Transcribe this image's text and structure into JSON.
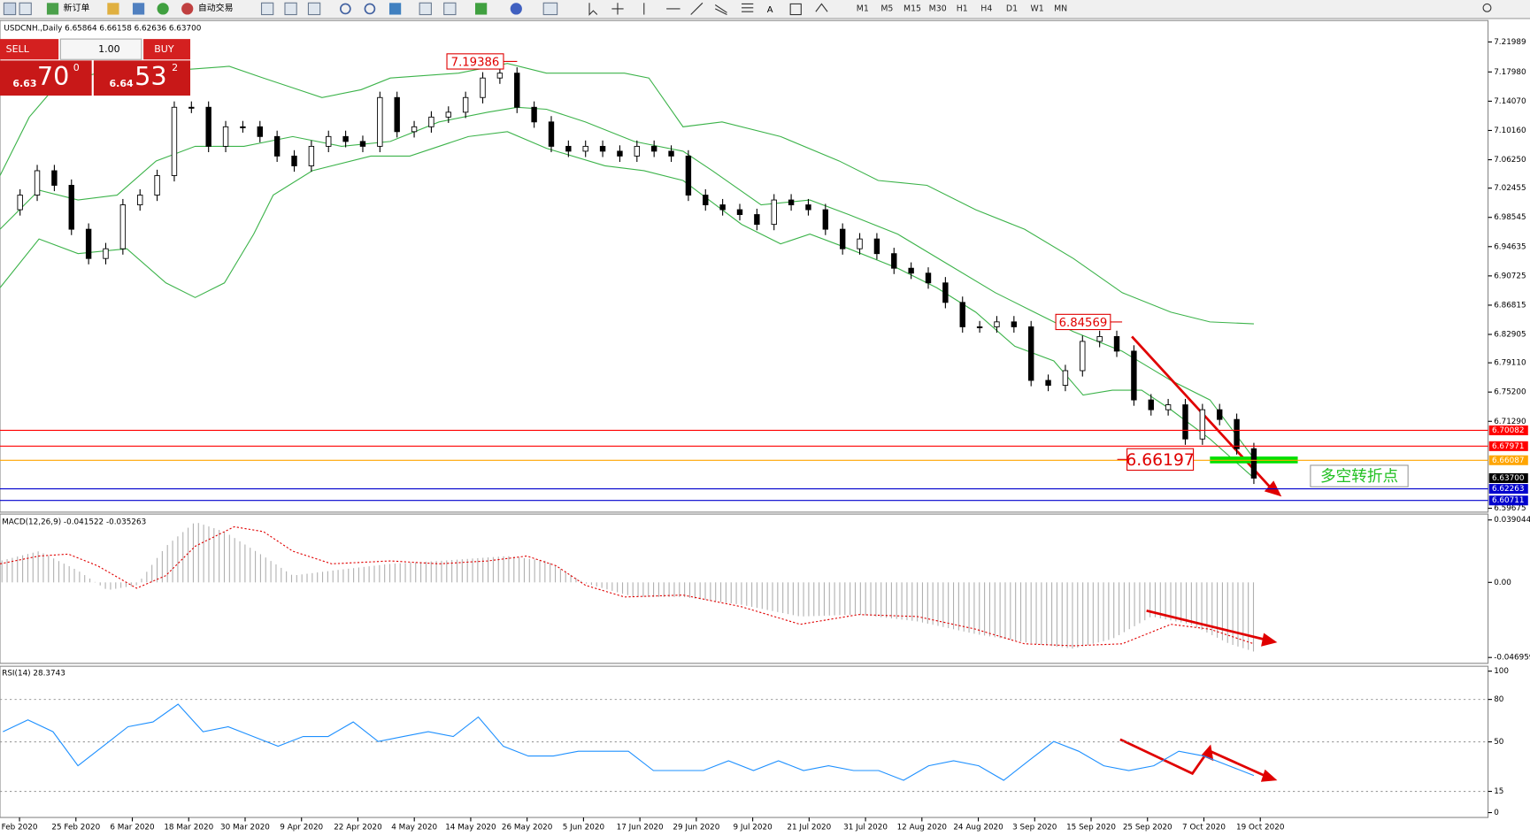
{
  "toolbar": {
    "new_order": "新订单",
    "auto_trading": "自动交易",
    "timeframes": [
      "M1",
      "M5",
      "M15",
      "M30",
      "H1",
      "H4",
      "D1",
      "W1",
      "MN"
    ]
  },
  "trade_panel": {
    "sell": "SELL",
    "buy": "BUY",
    "lots": "1.00",
    "bid_prefix": "6.63",
    "bid_big": "70",
    "bid_sup": "0",
    "ask_prefix": "6.64",
    "ask_big": "53",
    "ask_sup": "2"
  },
  "chart_data": [
    {
      "type": "candlestick",
      "title": "USDCNH.,Daily 6.65864 6.66158 6.62636 6.63700",
      "x_labels": [
        "Feb 2020",
        "25 Feb 2020",
        "6 Mar 2020",
        "18 Mar 2020",
        "30 Mar 2020",
        "9 Apr 2020",
        "22 Apr 2020",
        "4 May 2020",
        "14 May 2020",
        "26 May 2020",
        "5 Jun 2020",
        "17 Jun 2020",
        "29 Jun 2020",
        "9 Jul 2020",
        "21 Jul 2020",
        "31 Jul 2020",
        "12 Aug 2020",
        "24 Aug 2020",
        "3 Sep 2020",
        "15 Sep 2020",
        "25 Sep 2020",
        "7 Oct 2020",
        "19 Oct 2020"
      ],
      "close": [
        6.9957,
        7.0152,
        7.0478,
        7.0283,
        6.9696,
        6.9305,
        6.9435,
        7.0022,
        7.0152,
        7.0413,
        7.1326,
        7.1326,
        7.0804,
        7.1065,
        7.1065,
        7.0935,
        7.0674,
        7.0543,
        7.0804,
        7.0935,
        7.0869,
        7.0804,
        7.1456,
        7.1,
        7.1065,
        7.1195,
        7.126,
        7.1456,
        7.1717,
        7.1782,
        7.1326,
        7.113,
        7.0804,
        7.0739,
        7.0804,
        7.0739,
        7.0674,
        7.0804,
        7.0739,
        7.0674,
        7.0152,
        7.0022,
        6.9957,
        6.9892,
        6.9761,
        7.0087,
        7.0022,
        6.9957,
        6.9696,
        6.9435,
        6.9566,
        6.937,
        6.9175,
        6.9109,
        6.8979,
        6.8718,
        6.8392,
        6.8392,
        6.8458,
        6.8392,
        6.7676,
        6.761,
        6.7806,
        6.8197,
        6.8262,
        6.8067,
        6.7415,
        6.7284,
        6.735,
        6.6893,
        6.7284,
        6.7154,
        6.6763,
        6.637
      ],
      "ylim": [
        6.59675,
        7.21989
      ],
      "yticks": [
        7.21989,
        {
          "value": 7.1798,
          "label": "7.17980"
        },
        {
          "value": 7.1407,
          "label": "7.14070"
        },
        {
          "value": 7.1016,
          "label": "7.10160"
        },
        {
          "value": 7.0625,
          "label": "7.06250"
        },
        7.02455,
        6.98545,
        6.94635,
        6.90725,
        6.86815,
        6.82905,
        {
          "value": 6.7911,
          "label": "6.79110"
        },
        {
          "value": 6.752,
          "label": "6.75200"
        },
        {
          "value": 6.7129,
          "label": "6.71290"
        },
        6.59675
      ],
      "price_lines": [
        {
          "value": 6.70082,
          "color": "#ff0000",
          "line": true
        },
        {
          "value": 6.67971,
          "color": "#ff0000",
          "line": true
        },
        {
          "value": 6.66087,
          "color": "#ffa500",
          "line": true
        },
        {
          "value": 6.637,
          "label": "6.63700",
          "color": "#000000",
          "line": false
        },
        {
          "value": 6.62263,
          "color": "#0000cd",
          "line": true
        },
        {
          "value": 6.60711,
          "color": "#0000cd",
          "line": true
        }
      ],
      "annotations": [
        7.19386,
        6.84569,
        6.66197
      ],
      "turning_point": "多空转折点"
    },
    {
      "type": "macd",
      "title": "MACD(12,26,9) -0.041522 -0.035263",
      "ylim": [
        -0.046959,
        0.039044
      ],
      "yticks": [
        0.039044,
        {
          "value": 0,
          "label": "0.00"
        },
        -0.046959
      ]
    },
    {
      "type": "line",
      "title": "RSI(14) 28.3743",
      "color": "#1e90ff",
      "values": [
        57.2,
        65.5,
        57.2,
        33.1,
        46.9,
        60.7,
        64.1,
        76.6,
        57.2,
        60.7,
        53.8,
        46.9,
        53.8,
        53.8,
        64.1,
        50.3,
        53.8,
        57.2,
        53.8,
        67.6,
        46.9,
        40.0,
        40.0,
        43.4,
        43.4,
        43.4,
        29.7,
        29.7,
        29.7,
        36.6,
        29.7,
        36.6,
        29.7,
        33.1,
        29.7,
        29.7,
        22.8,
        33.1,
        36.6,
        33.1,
        22.8,
        36.6,
        50.3,
        43.4,
        33.1,
        29.7,
        33.1,
        43.4,
        40.0,
        33.1,
        26.2
      ],
      "ylim": [
        0,
        100
      ],
      "yticks": [
        100,
        80,
        50,
        15,
        0
      ]
    }
  ]
}
